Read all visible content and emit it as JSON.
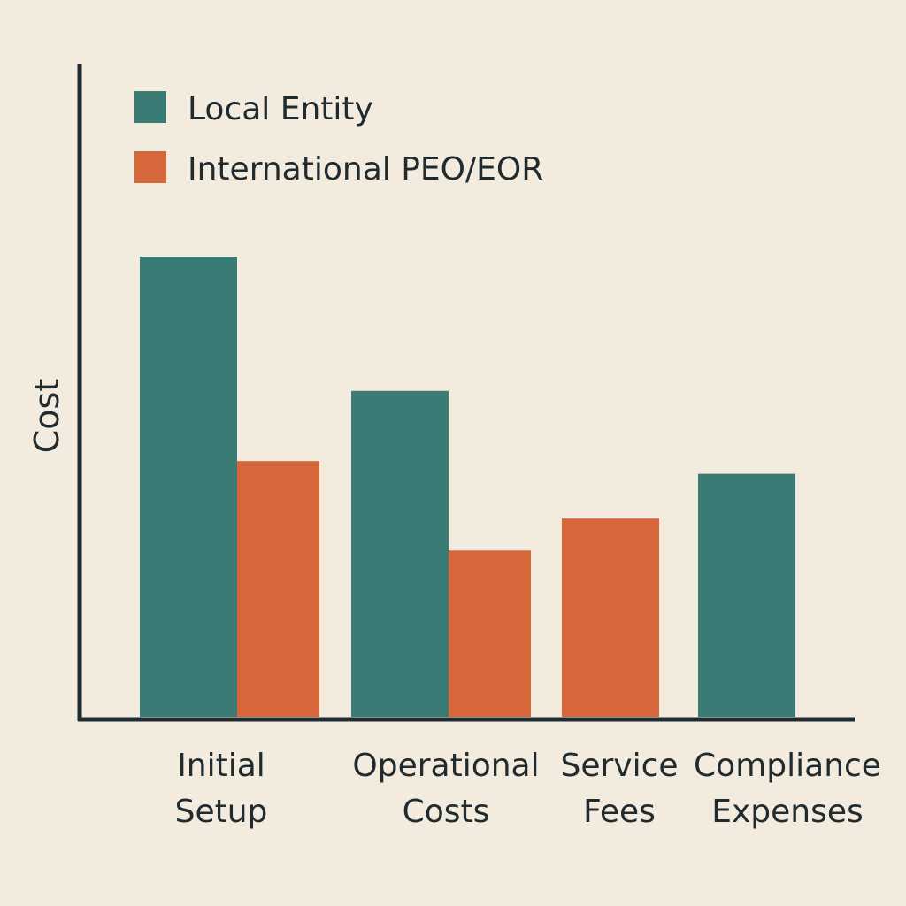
{
  "chart_data": {
    "type": "bar",
    "ylabel": "Cost",
    "xlabel": "",
    "title": "",
    "legend_position": "top-left",
    "grid": false,
    "ylim": [
      0,
      100
    ],
    "categories": [
      [
        "Initial",
        "Setup"
      ],
      [
        "Operational",
        "Costs"
      ],
      [
        "Service",
        "Fees"
      ],
      [
        "Compliance",
        "Expenses"
      ]
    ],
    "series": [
      {
        "name": "Local Entity",
        "color": "#3b7b76",
        "values": [
          72,
          51,
          null,
          38
        ]
      },
      {
        "name": "International PEO/EOR",
        "color": "#d5673a",
        "values": [
          40,
          26,
          31,
          null
        ]
      }
    ]
  },
  "colors": {
    "background": "#f4ebdf",
    "axis": "#1f2b2e",
    "text": "#1f2b2e"
  }
}
